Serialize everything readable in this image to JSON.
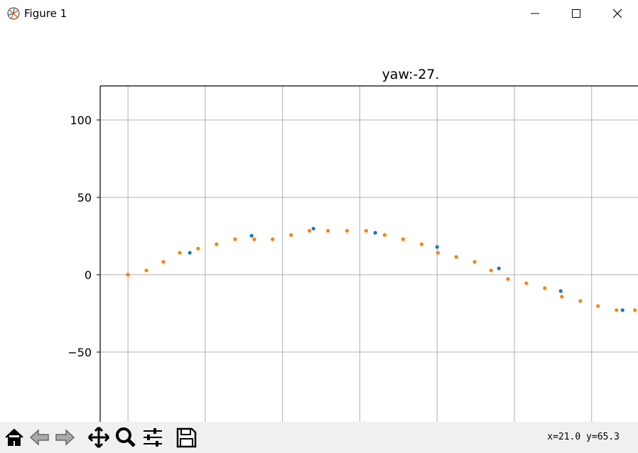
{
  "window": {
    "title": "Figure 1"
  },
  "chart_data": {
    "type": "scatter",
    "title": "yaw:-27.",
    "xlim": [
      -18,
      330
    ],
    "xticks": [
      0,
      50,
      100,
      150,
      200,
      250,
      300
    ],
    "ylim": [
      -95,
      122
    ],
    "yticks": [
      100,
      50,
      0,
      {
        "value": -50,
        "label": "−50"
      }
    ],
    "grid": true,
    "series": [
      {
        "color": "#1f77b4",
        "x": [
          0,
          40,
          80,
          120,
          160,
          200,
          240,
          280,
          320
        ],
        "values": [
          0,
          14.2,
          25.2,
          29.8,
          27.1,
          17.9,
          4.1,
          -10.6,
          -22.9
        ]
      },
      {
        "color": "#ff7f0e",
        "x": [
          0,
          11.9,
          22.9,
          33.5,
          45.4,
          57.3,
          69.3,
          81.7,
          93.6,
          105.5,
          117.4,
          129.4,
          141.7,
          154.1,
          166.1,
          178,
          190,
          200.5,
          212.4,
          224.3,
          234.9,
          245.9,
          257.8,
          269.7,
          280.7,
          292.7,
          304.1,
          316.1,
          328
        ],
        "values": [
          0,
          2.8,
          8.3,
          14.2,
          16.9,
          19.7,
          22.9,
          22.9,
          22.9,
          25.7,
          28.4,
          28.4,
          28.4,
          28.4,
          25.7,
          22.9,
          19.7,
          14.2,
          11.5,
          8.3,
          2.8,
          -2.8,
          -5.5,
          -8.7,
          -14.2,
          -17,
          -20.2,
          -22.9,
          -22.9
        ]
      }
    ]
  },
  "toolbar": {
    "status": "x=21.0 y=65.3"
  }
}
